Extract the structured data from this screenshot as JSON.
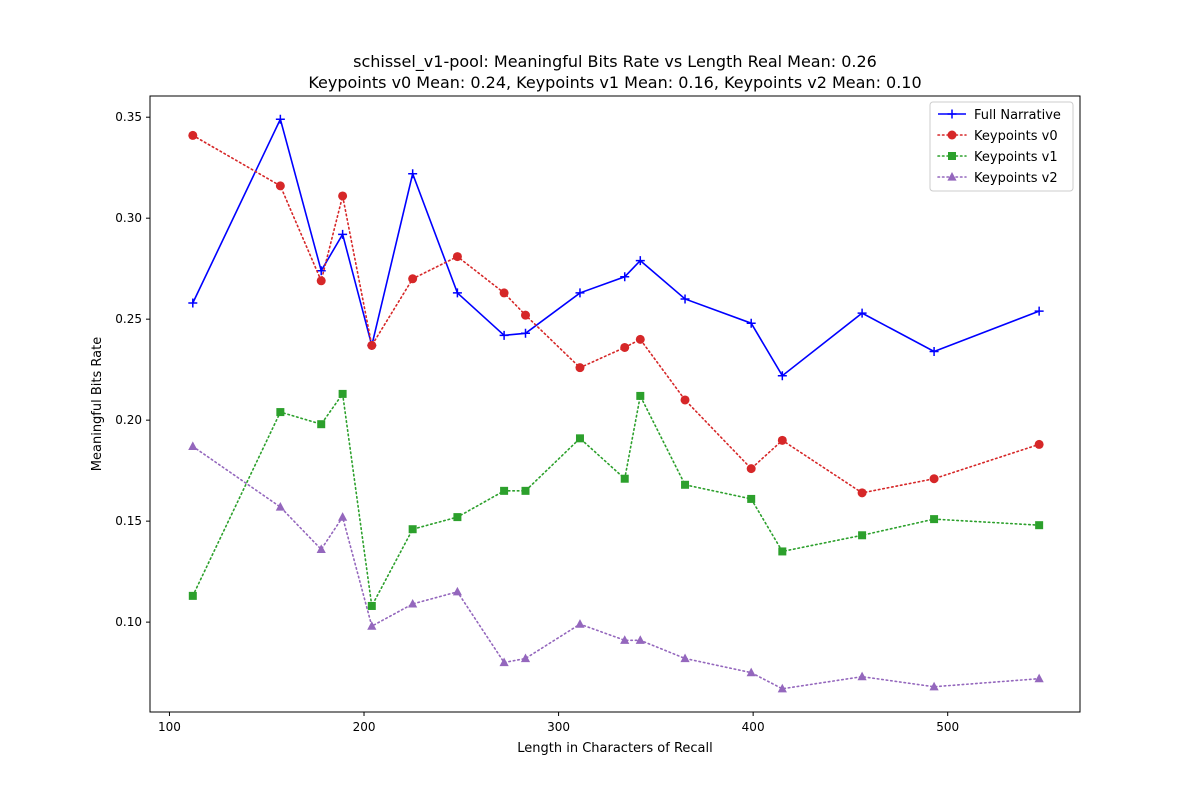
{
  "chart_data": {
    "type": "line",
    "title": "schissel_v1-pool: Meaningful Bits Rate vs Length Real Mean: 0.26",
    "subtitle": "Keypoints v0 Mean: 0.24, Keypoints v1 Mean: 0.16, Keypoints v2 Mean: 0.10",
    "xlabel": "Length in Characters of Recall",
    "ylabel": "Meaningful Bits Rate",
    "xlim": [
      90,
      568
    ],
    "ylim": [
      0.0555,
      0.3605
    ],
    "xticks": [
      100,
      200,
      300,
      400,
      500
    ],
    "yticks": [
      0.1,
      0.15,
      0.2,
      0.25,
      0.3,
      0.35
    ],
    "grid": false,
    "legend_position": "top-right",
    "x": [
      112,
      157,
      178,
      189,
      204,
      225,
      248,
      272,
      283,
      311,
      334,
      342,
      365,
      399,
      415,
      456,
      493,
      547
    ],
    "series": [
      {
        "name": "Full Narrative",
        "color": "#0000ff",
        "linestyle": "solid",
        "marker": "plus",
        "values": [
          0.258,
          0.349,
          0.274,
          0.292,
          0.237,
          0.322,
          0.263,
          0.242,
          0.243,
          0.263,
          0.271,
          0.279,
          0.26,
          0.248,
          0.222,
          0.253,
          0.234,
          0.254
        ]
      },
      {
        "name": "Keypoints v0",
        "color": "#d62728",
        "linestyle": "dotted",
        "marker": "circle",
        "values": [
          0.341,
          0.316,
          0.269,
          0.311,
          0.237,
          0.27,
          0.281,
          0.263,
          0.252,
          0.226,
          0.236,
          0.24,
          0.21,
          0.176,
          0.19,
          0.164,
          0.171,
          0.188
        ]
      },
      {
        "name": "Keypoints v1",
        "color": "#2ca02c",
        "linestyle": "dotted",
        "marker": "square",
        "values": [
          0.113,
          0.204,
          0.198,
          0.213,
          0.108,
          0.146,
          0.152,
          0.165,
          0.165,
          0.191,
          0.171,
          0.212,
          0.168,
          0.161,
          0.135,
          0.143,
          0.151,
          0.148
        ]
      },
      {
        "name": "Keypoints v2",
        "color": "#9467bd",
        "linestyle": "dotted",
        "marker": "triangle",
        "values": [
          0.187,
          0.157,
          0.136,
          0.152,
          0.098,
          0.109,
          0.115,
          0.08,
          0.082,
          0.099,
          0.091,
          0.091,
          0.082,
          0.075,
          0.067,
          0.073,
          0.068,
          0.072
        ]
      }
    ]
  }
}
